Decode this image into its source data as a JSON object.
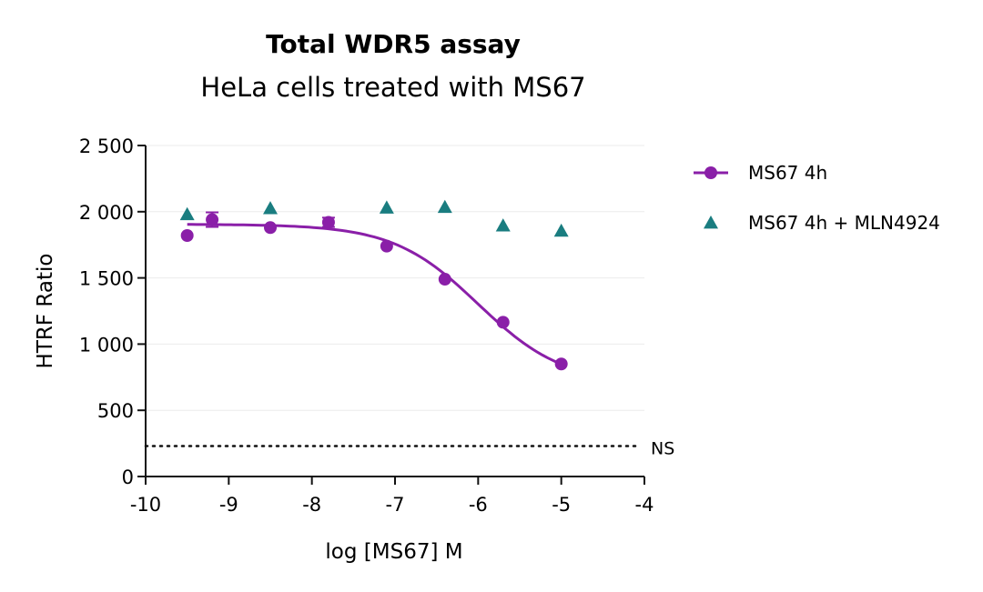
{
  "chart_data": {
    "type": "scatter",
    "title": "Total WDR5 assay",
    "subtitle": "HeLa cells treated with MS67",
    "xlabel": "log [MS67] M",
    "ylabel": "HTRF Ratio",
    "xlim": [
      -10,
      -4
    ],
    "ylim": [
      0,
      2500
    ],
    "xticks": [
      "-10",
      "-9",
      "-8",
      "-7",
      "-6",
      "-5",
      "-4"
    ],
    "yticks": [
      "0",
      "500",
      "1 000",
      "1 500",
      "2 000",
      "2 500"
    ],
    "grid": true,
    "legend_position": "right",
    "series": [
      {
        "name": "MS67 4h",
        "marker": "circle",
        "color": "#8a1fa8",
        "fit_curve": true,
        "x": [
          -9.5,
          -9.2,
          -8.5,
          -7.8,
          -7.1,
          -6.4,
          -5.7,
          -5.0
        ],
        "y": [
          1820,
          1940,
          1880,
          1920,
          1740,
          1490,
          1165,
          850
        ],
        "error": [
          0,
          55,
          0,
          35,
          0,
          0,
          0,
          0
        ]
      },
      {
        "name": "MS67 4h + MLN4924",
        "marker": "triangle",
        "color": "#1a7d80",
        "fit_curve": false,
        "x": [
          -9.5,
          -8.5,
          -7.1,
          -6.4,
          -5.7,
          -5.0
        ],
        "y": [
          1980,
          2025,
          2030,
          2035,
          1895,
          1855
        ]
      }
    ],
    "reference_line": {
      "label": "NS",
      "y": 230,
      "style": "dotted"
    }
  }
}
